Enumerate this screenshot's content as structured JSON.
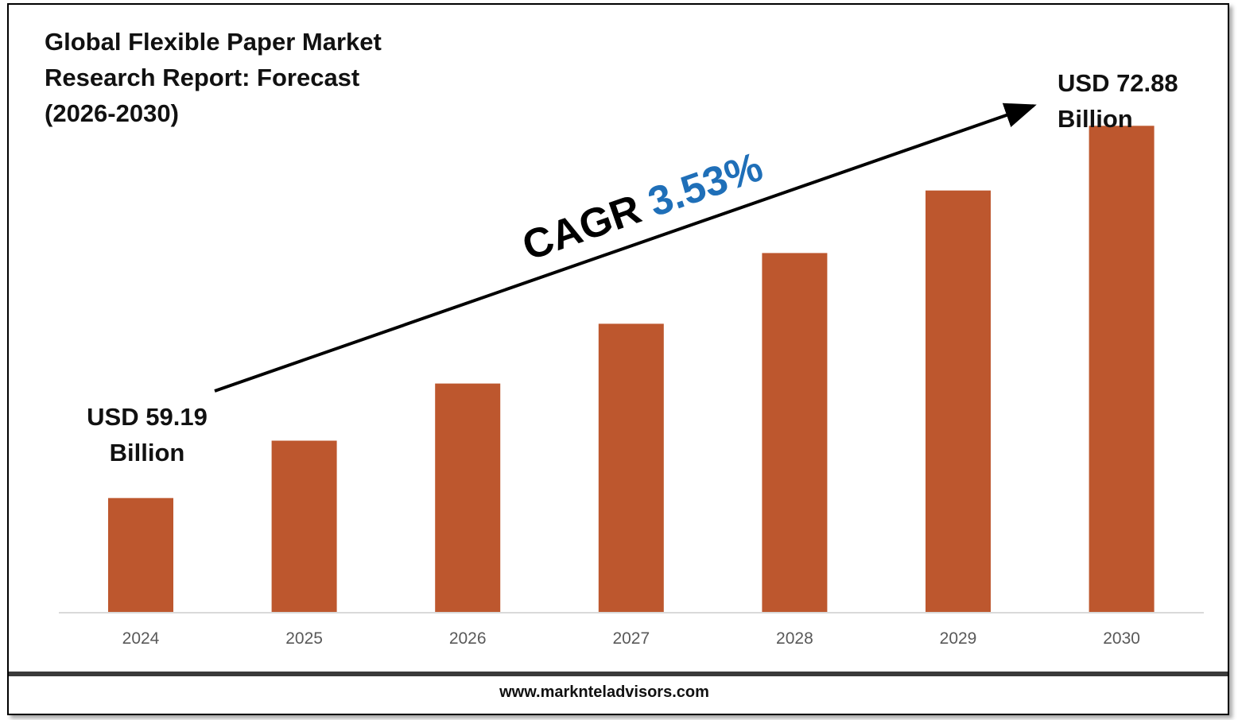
{
  "title": "Global Flexible Paper Market\nResearch Report: Forecast\n(2026-2030)",
  "colors": {
    "bar": "#bd572e",
    "cagr_value": "#1f6fb8",
    "text": "#111111",
    "axis_tick": "#595959"
  },
  "annotations": {
    "start_label_line1": "USD 59.19",
    "start_label_line2": "Billion",
    "end_label_line1": "USD 72.88",
    "end_label_line2": "Billion",
    "cagr_prefix": "CAGR ",
    "cagr_value": "3.53%"
  },
  "footer": {
    "url": "www.marknteladvisors.com"
  },
  "chart_data": {
    "type": "bar",
    "title": "Global Flexible Paper Market Research Report: Forecast (2026-2030)",
    "categories": [
      "2024",
      "2025",
      "2026",
      "2027",
      "2028",
      "2029",
      "2030"
    ],
    "values": [
      59.19,
      61.3,
      63.4,
      65.6,
      68.2,
      70.5,
      72.88
    ],
    "unit": "USD Billion",
    "ylim": [
      55.0,
      74.0
    ],
    "grid": false,
    "legend": "none"
  }
}
